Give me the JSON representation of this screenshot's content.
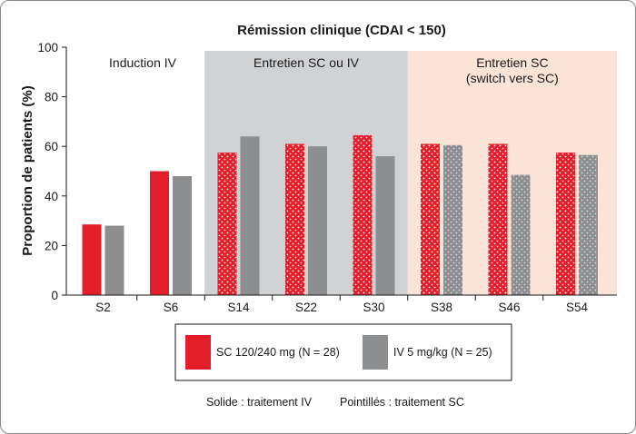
{
  "chart_data": {
    "type": "bar",
    "title": "Rémission clinique (CDAI < 150)",
    "ylabel": "Proportion de patients (%)",
    "xlabel": "",
    "ylim": [
      0,
      100
    ],
    "yticks": [
      0,
      20,
      40,
      60,
      80,
      100
    ],
    "grid": false,
    "categories": [
      "S2",
      "S6",
      "S14",
      "S22",
      "S30",
      "S38",
      "S46",
      "S54"
    ],
    "series": [
      {
        "name": "SC 120/240 mg (N = 28)",
        "color": "#e31d2a",
        "values": [
          28.5,
          50,
          57.5,
          61,
          64.5,
          61,
          61,
          57.5
        ],
        "fill_style": [
          "solid",
          "solid",
          "dotted",
          "dotted",
          "dotted",
          "dotted",
          "dotted",
          "dotted"
        ]
      },
      {
        "name": "IV 5 mg/kg (N = 25)",
        "color": "#8d8e90",
        "values": [
          28,
          48,
          64,
          60,
          56,
          60.5,
          48.5,
          56.5
        ],
        "fill_style": [
          "solid",
          "solid",
          "solid",
          "solid",
          "solid",
          "dotted",
          "dotted",
          "dotted"
        ]
      }
    ],
    "regions": [
      {
        "lines": [
          "Induction IV"
        ],
        "from": 0,
        "to": 1,
        "color": "#ffffff"
      },
      {
        "lines": [
          "Entretien SC ou IV"
        ],
        "from": 2,
        "to": 4,
        "color": "#d1d2d4"
      },
      {
        "lines": [
          "Entretien SC",
          "(switch vers SC)"
        ],
        "from": 5,
        "to": 7,
        "color": "#fbe3d8"
      }
    ],
    "legend": {
      "placement": "bottom",
      "items": [
        "SC 120/240 mg (N = 28)",
        "IV 5 mg/kg (N = 25)"
      ]
    },
    "footnotes": [
      "Solide : traitement IV",
      "Pointillés : traitement SC"
    ]
  }
}
